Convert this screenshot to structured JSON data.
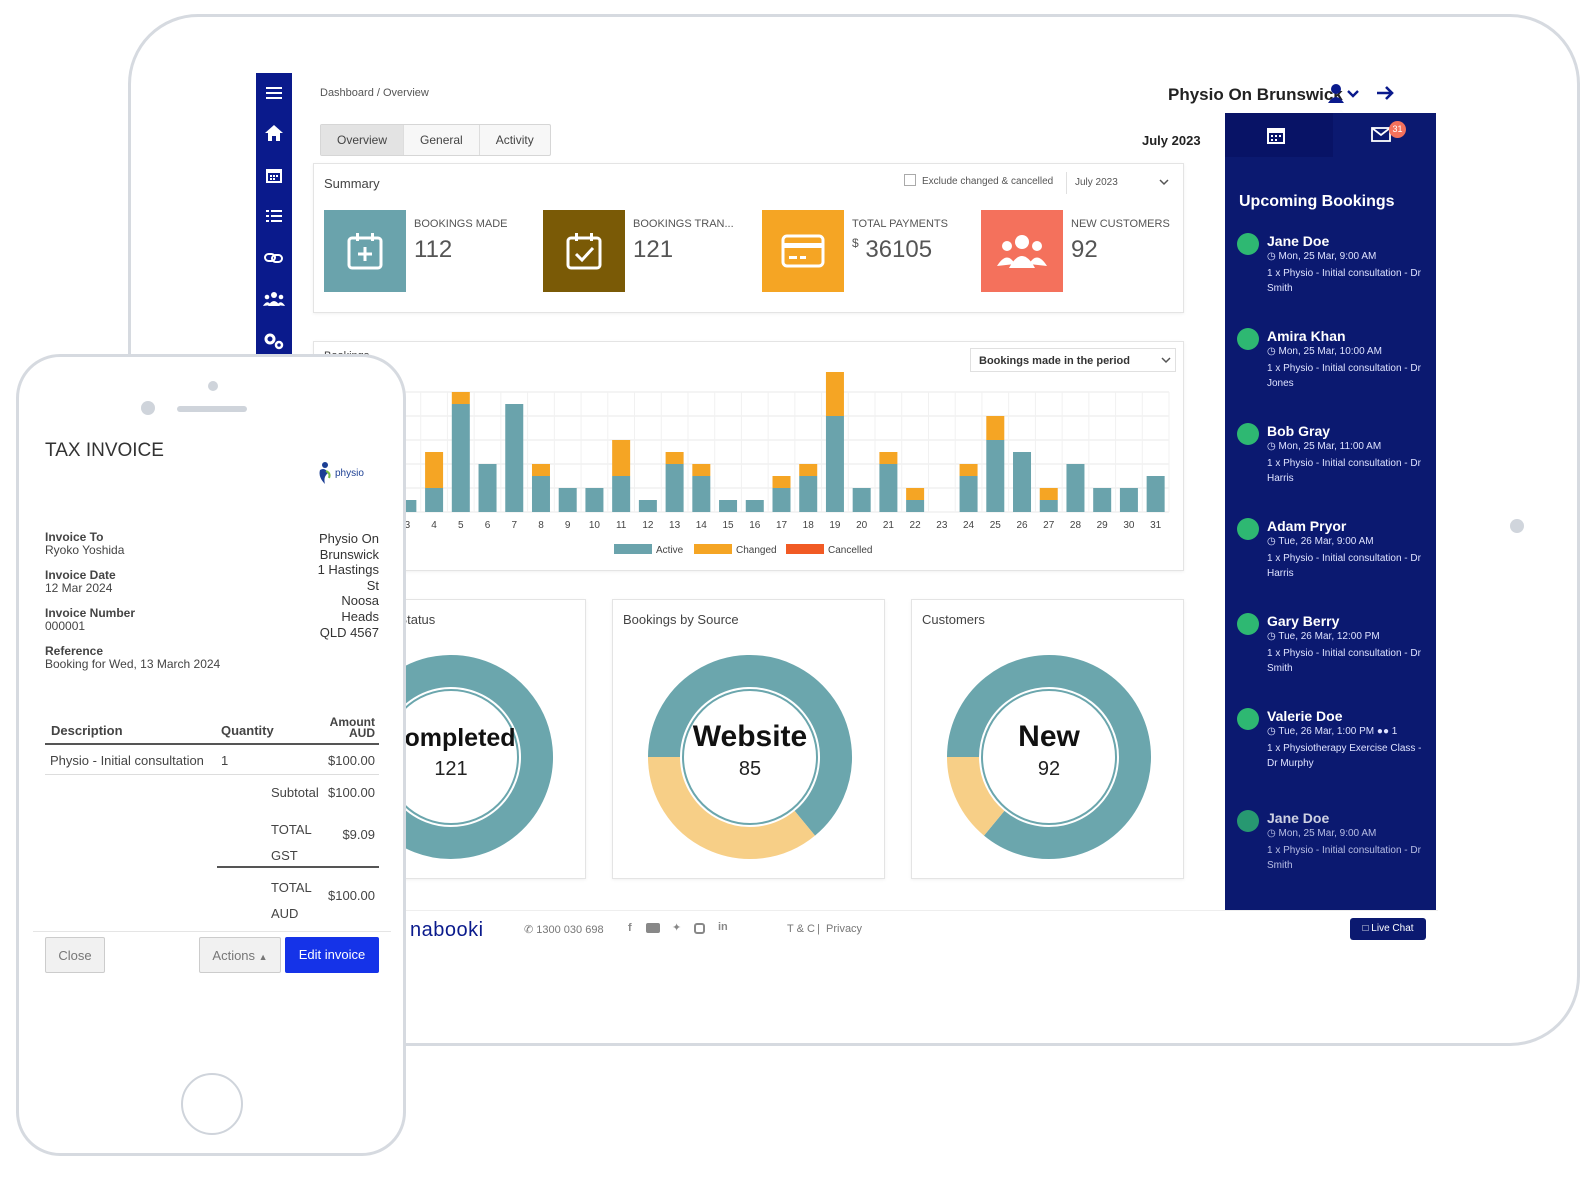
{
  "header": {
    "breadcrumb": "Dashboard / Overview",
    "org_name": "Physio On Brunswick",
    "period": "July 2023"
  },
  "tabs": [
    {
      "label": "Overview"
    },
    {
      "label": "General"
    },
    {
      "label": "Activity"
    }
  ],
  "summary": {
    "title": "Summary",
    "exclude_label": "Exclude changed & cancelled",
    "period_select": "July 2023",
    "stats": [
      {
        "label": "BOOKINGS MADE",
        "value": "112",
        "color": "#6aa3ac"
      },
      {
        "label": "BOOKINGS TRAN...",
        "value": "121",
        "color": "#7a5a06"
      },
      {
        "label": "TOTAL PAYMENTS",
        "currency": "$",
        "value": "36105",
        "color": "#f5a524"
      },
      {
        "label": "NEW CUSTOMERS",
        "value": "92",
        "color": "#f4715c"
      }
    ]
  },
  "bookings_chart": {
    "title": "Bookings",
    "select": "Bookings made in the period"
  },
  "chart_data": {
    "type": "bar",
    "stacked": true,
    "categories": [
      "3",
      "4",
      "5",
      "6",
      "7",
      "8",
      "9",
      "10",
      "11",
      "12",
      "13",
      "14",
      "15",
      "16",
      "17",
      "18",
      "19",
      "20",
      "21",
      "22",
      "23",
      "24",
      "25",
      "26",
      "27",
      "28",
      "29",
      "30",
      "31"
    ],
    "series": [
      {
        "name": "Active",
        "color": "#6aa3ac",
        "values": [
          1,
          2,
          9,
          4,
          9,
          3,
          2,
          2,
          3,
          1,
          4,
          3,
          1,
          1,
          2,
          3,
          8,
          2,
          4,
          1,
          0,
          3,
          6,
          5,
          1,
          4,
          2,
          2,
          3
        ]
      },
      {
        "name": "Changed",
        "color": "#f5a524",
        "values": [
          0,
          3,
          1,
          0,
          0,
          1,
          0,
          0,
          3,
          0,
          1,
          1,
          0,
          0,
          1,
          1,
          5,
          0,
          1,
          1,
          0,
          1,
          2,
          0,
          1,
          0,
          0,
          0,
          0
        ]
      },
      {
        "name": "Cancelled",
        "color": "#f15a24",
        "values": [
          0,
          0,
          0,
          0,
          0,
          0,
          0,
          0,
          0,
          0,
          0,
          0,
          0,
          0,
          0,
          0,
          0,
          0,
          0,
          0,
          0,
          0,
          0,
          0,
          0,
          0,
          0,
          0,
          0
        ]
      }
    ],
    "legend": "bottom",
    "grid": true
  },
  "donuts": [
    {
      "title": "Bookings by Status",
      "center_label": "Completed",
      "center_value": "121",
      "shares": [
        0.97,
        0.03
      ],
      "colors": [
        "#6ba6ad",
        "#f7cf87"
      ]
    },
    {
      "title": "Bookings by Source",
      "center_label": "Website",
      "center_value": "85",
      "shares": [
        0.64,
        0.36
      ],
      "colors": [
        "#6ba6ad",
        "#f7cf87"
      ]
    },
    {
      "title": "Customers",
      "center_label": "New",
      "center_value": "92",
      "shares": [
        0.86,
        0.14
      ],
      "colors": [
        "#6ba6ad",
        "#f7cf87"
      ]
    }
  ],
  "upcoming": {
    "title": "Upcoming Bookings",
    "badge": "31",
    "items": [
      {
        "name": "Jane Doe",
        "time": "Mon, 25 Mar, 9:00 AM",
        "desc": "1 x Physio - Initial consultation - Dr Smith"
      },
      {
        "name": "Amira Khan",
        "time": "Mon, 25 Mar, 10:00 AM",
        "desc": "1 x Physio - Initial consultation - Dr Jones"
      },
      {
        "name": "Bob Gray",
        "time": "Mon, 25 Mar, 11:00 AM",
        "desc": "1 x Physio - Initial consultation - Dr Harris"
      },
      {
        "name": "Adam Pryor",
        "time": "Tue, 26 Mar, 9:00 AM",
        "desc": "1 x Physio - Initial consultation - Dr Harris"
      },
      {
        "name": "Gary Berry",
        "time": "Tue, 26 Mar, 12:00 PM",
        "desc": "1 x Physio - Initial consultation - Dr Smith"
      },
      {
        "name": "Valerie Doe",
        "time": "Tue, 26 Mar, 1:00 PM",
        "attendees": "1",
        "desc": "1 x Physiotherapy Exercise Class - Dr Murphy"
      },
      {
        "name": "Jane Doe",
        "time": "Mon, 25 Mar, 9:00 AM",
        "desc": "1 x Physio - Initial consultation - Dr Smith"
      }
    ]
  },
  "footer": {
    "brand": "nabooki",
    "phone": "1300 030 698",
    "tc": "T & C",
    "privacy": "Privacy",
    "live_chat": "Live Chat"
  },
  "invoice": {
    "title": "TAX INVOICE",
    "logo_text": "physio",
    "invoice_to_label": "Invoice To",
    "invoice_to": "Ryoko Yoshida",
    "date_label": "Invoice Date",
    "date": "12 Mar 2024",
    "number_label": "Invoice Number",
    "number": "000001",
    "reference_label": "Reference",
    "reference": "Booking for Wed, 13 March 2024",
    "address": [
      "Physio On",
      "Brunswick",
      "1 Hastings",
      "St",
      "Noosa",
      "Heads",
      "QLD 4567"
    ],
    "col_description": "Description",
    "col_quantity": "Quantity",
    "col_amount": "Amount",
    "col_amount_unit": "AUD",
    "line_desc": "Physio - Initial consultation",
    "line_qty": "1",
    "line_amount": "$100.00",
    "subtotal_label": "Subtotal",
    "subtotal": "$100.00",
    "gst_label_1": "TOTAL",
    "gst_label_2": "GST",
    "gst": "$9.09",
    "total_label_1": "TOTAL",
    "total_label_2": "AUD",
    "total": "$100.00",
    "close": "Close",
    "actions": "Actions",
    "edit": "Edit invoice"
  }
}
